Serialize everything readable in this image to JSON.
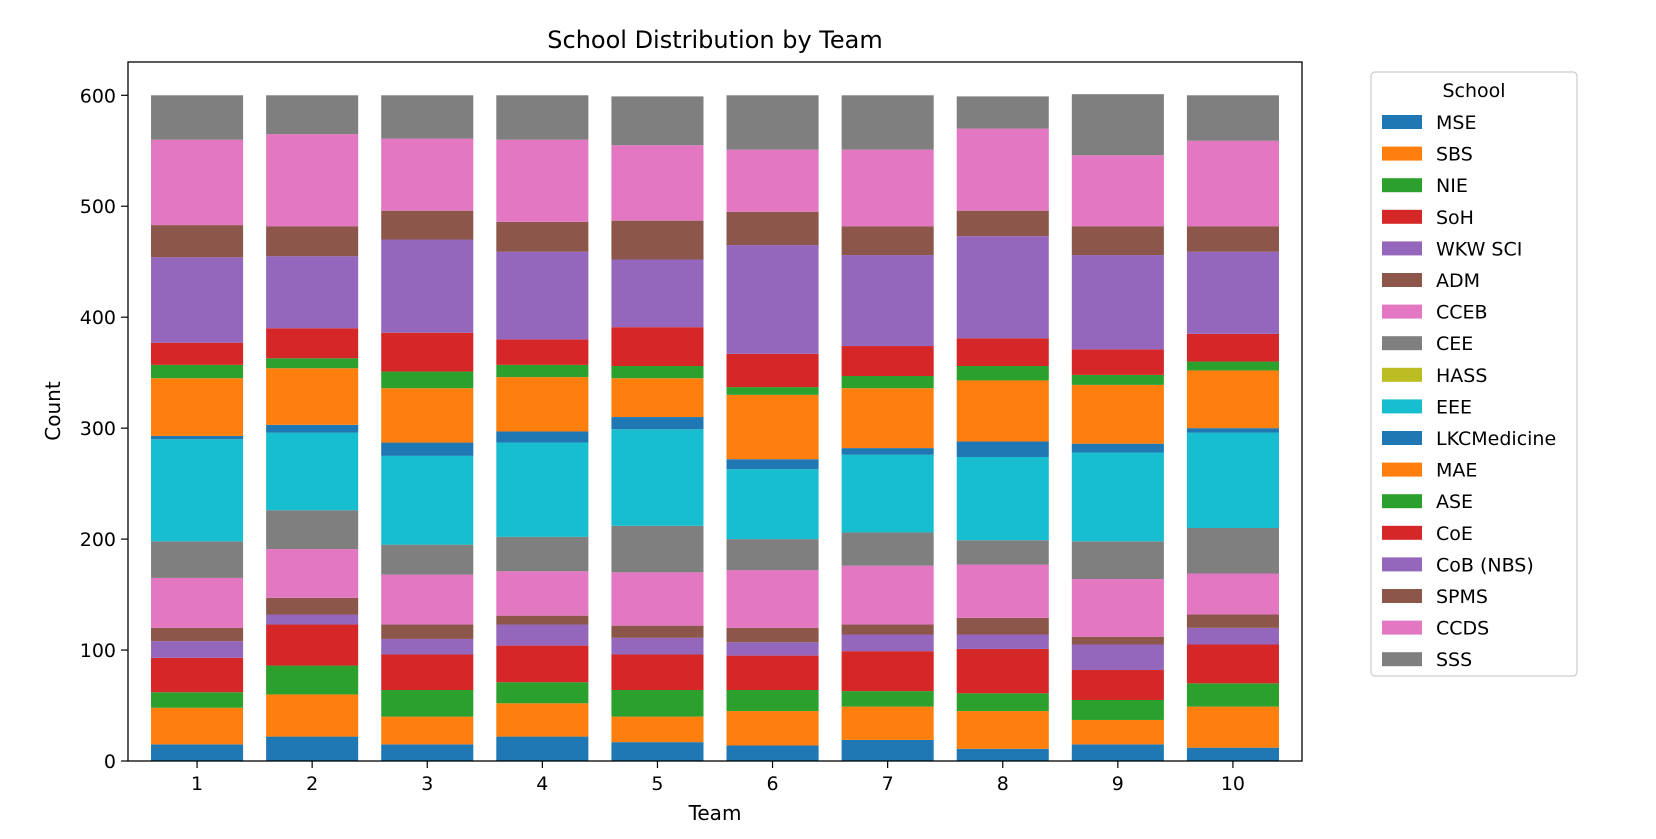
{
  "chart_data": {
    "type": "bar",
    "stacked": true,
    "title": "School Distribution by Team",
    "xlabel": "Team",
    "ylabel": "Count",
    "ylim": [
      0,
      630
    ],
    "yticks": [
      0,
      100,
      200,
      300,
      400,
      500,
      600
    ],
    "grid": false,
    "legend": {
      "title": "School",
      "placement": "outside-right"
    },
    "categories": [
      "1",
      "2",
      "3",
      "4",
      "5",
      "6",
      "7",
      "8",
      "9",
      "10"
    ],
    "series": [
      {
        "name": "MSE",
        "color": "#1f77b4",
        "values": [
          15,
          22,
          15,
          22,
          17,
          14,
          19,
          11,
          15,
          12
        ]
      },
      {
        "name": "SBS",
        "color": "#ff7f0e",
        "values": [
          33,
          38,
          25,
          30,
          23,
          31,
          30,
          34,
          22,
          37
        ]
      },
      {
        "name": "NIE",
        "color": "#2ca02c",
        "values": [
          14,
          26,
          24,
          19,
          24,
          19,
          14,
          16,
          18,
          21
        ]
      },
      {
        "name": "SoH",
        "color": "#d62728",
        "values": [
          31,
          37,
          32,
          33,
          32,
          31,
          36,
          40,
          27,
          35
        ]
      },
      {
        "name": "WKW SCI",
        "color": "#9467bd",
        "values": [
          15,
          9,
          14,
          19,
          15,
          12,
          15,
          13,
          23,
          15
        ]
      },
      {
        "name": "ADM",
        "color": "#8c564b",
        "values": [
          12,
          15,
          13,
          8,
          11,
          13,
          9,
          15,
          7,
          12
        ]
      },
      {
        "name": "CCEB",
        "color": "#e377c2",
        "values": [
          45,
          44,
          45,
          40,
          48,
          52,
          53,
          48,
          52,
          37
        ]
      },
      {
        "name": "CEE",
        "color": "#7f7f7f",
        "values": [
          33,
          35,
          27,
          31,
          42,
          28,
          30,
          22,
          34,
          41
        ]
      },
      {
        "name": "HASS",
        "color": "#bcbd22",
        "values": [
          0,
          0,
          0,
          0,
          0,
          0,
          0,
          0,
          0,
          0
        ]
      },
      {
        "name": "EEE",
        "color": "#17becf",
        "values": [
          92,
          70,
          80,
          85,
          87,
          63,
          70,
          75,
          80,
          86
        ]
      },
      {
        "name": "LKCMedicine",
        "color": "#1f77b4",
        "values": [
          3,
          7,
          12,
          10,
          11,
          9,
          6,
          14,
          8,
          4
        ]
      },
      {
        "name": "MAE",
        "color": "#ff7f0e",
        "values": [
          52,
          51,
          49,
          49,
          35,
          58,
          54,
          55,
          53,
          52
        ]
      },
      {
        "name": "ASE",
        "color": "#2ca02c",
        "values": [
          12,
          9,
          15,
          11,
          11,
          7,
          11,
          13,
          9,
          8
        ]
      },
      {
        "name": "CoE",
        "color": "#d62728",
        "values": [
          20,
          27,
          35,
          23,
          35,
          30,
          27,
          25,
          23,
          25
        ]
      },
      {
        "name": "CoB (NBS)",
        "color": "#9467bd",
        "values": [
          77,
          65,
          84,
          79,
          61,
          98,
          82,
          92,
          85,
          74
        ]
      },
      {
        "name": "SPMS",
        "color": "#8c564b",
        "values": [
          29,
          27,
          26,
          27,
          35,
          30,
          26,
          23,
          26,
          23
        ]
      },
      {
        "name": "CCDS",
        "color": "#e377c2",
        "values": [
          77,
          83,
          65,
          74,
          68,
          56,
          69,
          74,
          64,
          77
        ]
      },
      {
        "name": "SSS",
        "color": "#7f7f7f",
        "values": [
          40,
          35,
          39,
          40,
          44,
          49,
          49,
          29,
          55,
          41
        ]
      }
    ]
  }
}
